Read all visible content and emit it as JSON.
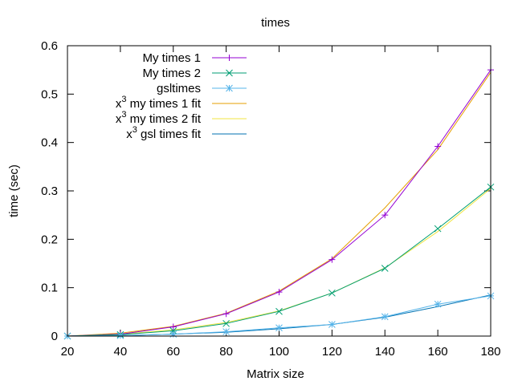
{
  "chart_data": {
    "type": "line",
    "title": "times",
    "xlabel": "Matrix size",
    "ylabel": "time (sec)",
    "xlim": [
      20,
      180
    ],
    "ylim": [
      0,
      0.6
    ],
    "xticks": [
      20,
      40,
      60,
      80,
      100,
      120,
      140,
      160,
      180
    ],
    "yticks": [
      0,
      0.1,
      0.2,
      0.3,
      0.4,
      0.5,
      0.6
    ],
    "xtick_labels": [
      "20",
      "40",
      "60",
      "80",
      "100",
      "120",
      "140",
      "160",
      "180"
    ],
    "ytick_labels": [
      "0",
      "0.1",
      "0.2",
      "0.3",
      "0.4",
      "0.5",
      "0.6"
    ],
    "x": [
      20,
      40,
      60,
      80,
      100,
      120,
      140,
      160,
      180
    ],
    "legend_position": "top-left",
    "series": [
      {
        "name": "My times 1",
        "label": "My times 1",
        "style": "linespoints",
        "marker": "plus",
        "color": "#9400d3",
        "values": [
          0.0,
          0.004,
          0.019,
          0.046,
          0.091,
          0.158,
          0.25,
          0.392,
          0.55
        ]
      },
      {
        "name": "My times 2",
        "label": "My times 2",
        "style": "linespoints",
        "marker": "cross",
        "color": "#009e73",
        "values": [
          0.0,
          0.003,
          0.011,
          0.026,
          0.051,
          0.089,
          0.14,
          0.222,
          0.308
        ]
      },
      {
        "name": "gsltimes",
        "label": "gsltimes",
        "style": "linespoints",
        "marker": "star",
        "color": "#56b4e9",
        "values": [
          0.0,
          0.001,
          0.004,
          0.009,
          0.017,
          0.024,
          0.04,
          0.066,
          0.083
        ]
      },
      {
        "name": "x^3 my times 1 fit",
        "label_base": "x",
        "label_sup": "3",
        "label_rest": " my times 1 fit",
        "style": "lines",
        "color": "#e69f00",
        "values": [
          0.0,
          0.006,
          0.02,
          0.047,
          0.093,
          0.16,
          0.265,
          0.385,
          0.545
        ]
      },
      {
        "name": "x^3 my times 2 fit",
        "label_base": "x",
        "label_sup": "3",
        "label_rest": " my times 2 fit",
        "style": "lines",
        "color": "#f0e442",
        "values": [
          0.0,
          0.004,
          0.013,
          0.028,
          0.052,
          0.089,
          0.141,
          0.216,
          0.305
        ]
      },
      {
        "name": "x^3 gsl times fit",
        "label_base": "x",
        "label_sup": "3",
        "label_rest": " gsl times fit",
        "style": "lines",
        "color": "#0072b2",
        "values": [
          0.0,
          0.001,
          0.004,
          0.008,
          0.015,
          0.024,
          0.039,
          0.061,
          0.085
        ]
      }
    ]
  }
}
